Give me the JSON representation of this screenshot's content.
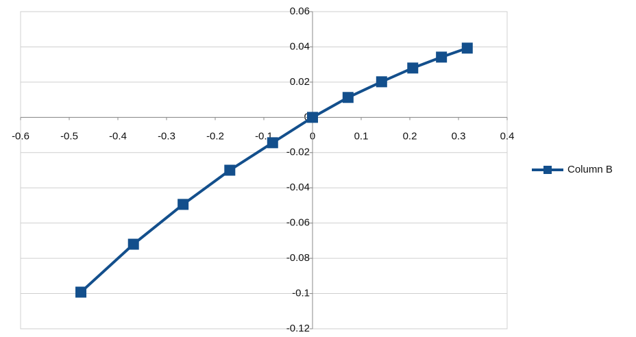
{
  "chart_data": {
    "type": "line",
    "x": [
      -0.476,
      -0.368,
      -0.266,
      -0.17,
      -0.082,
      0,
      0.073,
      0.142,
      0.206,
      0.265,
      0.318
    ],
    "series": [
      {
        "name": "Column B",
        "color": "#134f8c",
        "values": [
          -0.0992,
          -0.072,
          -0.0494,
          -0.03,
          -0.0144,
          0,
          0.0113,
          0.0202,
          0.028,
          0.0342,
          0.0393
        ]
      }
    ],
    "xlim": [
      -0.6,
      0.4
    ],
    "xticks": [
      -0.6,
      -0.5,
      -0.4,
      -0.3,
      -0.2,
      -0.1,
      0,
      0.1,
      0.2,
      0.3,
      0.4
    ],
    "ylim": [
      -0.12,
      0.06
    ],
    "yticks": [
      0.06,
      0.04,
      0.02,
      0,
      -0.02,
      -0.04,
      -0.06,
      -0.08,
      -0.1,
      -0.12
    ],
    "grid": true,
    "legend": "right"
  }
}
